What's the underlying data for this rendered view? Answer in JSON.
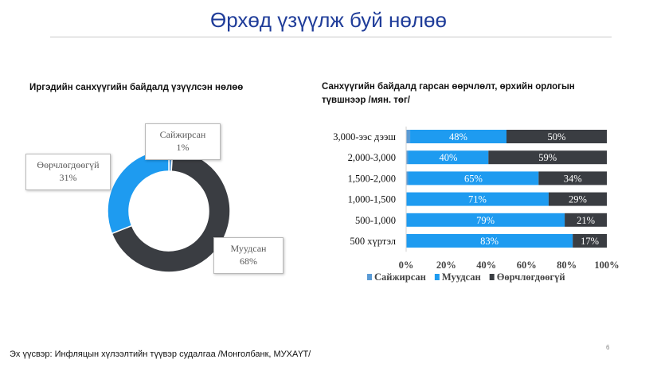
{
  "slide": {
    "title": "Өрхөд үзүүлж буй нөлөө",
    "source": "Эх үүсвэр: Инфляцын хүлээлтийн түүвэр судалгаа /Монголбанк, МУХАҮТ/",
    "page_number": "6"
  },
  "left_chart": {
    "title": "Иргэдийн санхүүгийн байдалд үзүүлсэн нөлөө"
  },
  "right_chart": {
    "title": "Санхүүгийн байдалд гарсан өөрчлөлт, өрхийн орлогын түвшнээр /мян. төг/"
  },
  "colors": {
    "improved": "#5b9bd5",
    "worsened": "#1e9bf0",
    "unchanged": "#3a3d42",
    "title": "#1f3c99"
  },
  "chart_data": [
    {
      "type": "pie",
      "variant": "donut",
      "title": "Иргэдийн санхүүгийн байдалд үзүүлсэн нөлөө",
      "slices": [
        {
          "label": "Сайжирсан",
          "value": 1,
          "value_label": "1%",
          "color": "#5b9bd5"
        },
        {
          "label": "Муудсан",
          "value": 68,
          "value_label": "68%",
          "color": "#3a3d42"
        },
        {
          "label": "Өөрчлөгдөөгүй",
          "value": 31,
          "value_label": "31%",
          "color": "#1e9bf0"
        }
      ]
    },
    {
      "type": "bar",
      "orientation": "horizontal",
      "stacked": "percent",
      "title": "Санхүүгийн байдалд гарсан өөрчлөлт, өрхийн орлогын түвшнээр /мян. төг/",
      "categories": [
        "3,000-ээс дээш",
        "2,000-3,000",
        "1,500-2,000",
        "1,000-1,500",
        "500-1,000",
        "500 хүртэл"
      ],
      "series": [
        {
          "name": "Сайжирсан",
          "color": "#5b9bd5",
          "values": [
            2,
            1,
            1,
            0,
            0,
            0
          ],
          "labels": [
            "",
            "",
            "",
            "",
            "",
            ""
          ]
        },
        {
          "name": "Муудсан",
          "color": "#1e9bf0",
          "values": [
            48,
            40,
            65,
            71,
            79,
            83
          ],
          "labels": [
            "48%",
            "40%",
            "65%",
            "71%",
            "79%",
            "83%"
          ]
        },
        {
          "name": "Өөрчлөгдөөгүй",
          "color": "#3a3d42",
          "values": [
            50,
            59,
            34,
            29,
            21,
            17
          ],
          "labels": [
            "50%",
            "59%",
            "34%",
            "29%",
            "21%",
            "17%"
          ]
        }
      ],
      "xlim": [
        0,
        100
      ],
      "xticks": [
        "0%",
        "20%",
        "40%",
        "60%",
        "80%",
        "100%"
      ],
      "legend": "bottom",
      "grid": false
    }
  ]
}
